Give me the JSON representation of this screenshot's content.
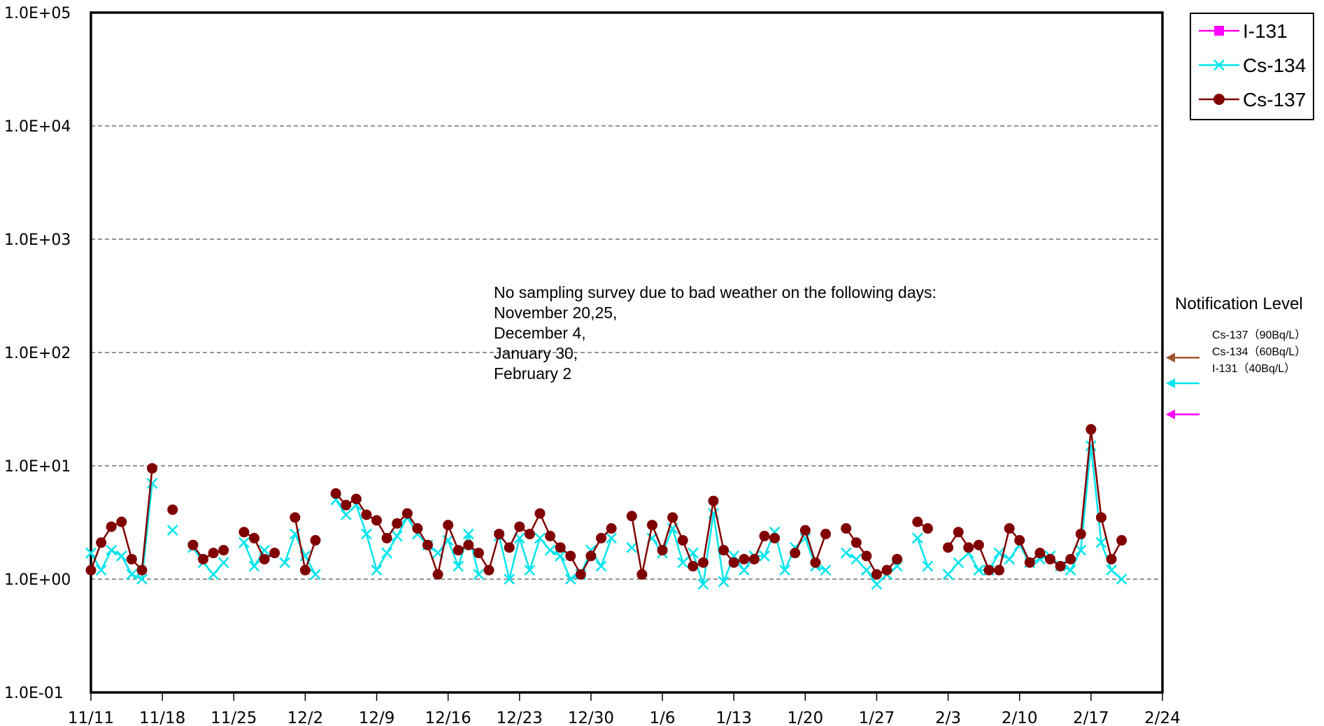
{
  "chart_data": {
    "type": "line",
    "title": "",
    "xlabel": "",
    "ylabel": "",
    "y_scale": "log",
    "ylim": [
      0.1,
      100000
    ],
    "y_ticks": [
      "1.0E-01",
      "1.0E+00",
      "1.0E+01",
      "1.0E+02",
      "1.0E+03",
      "1.0E+04",
      "1.0E+05"
    ],
    "x_range": [
      "11/11",
      "2/24"
    ],
    "x_ticks": [
      "11/11",
      "11/18",
      "11/25",
      "12/2",
      "12/9",
      "12/16",
      "12/23",
      "12/30",
      "1/6",
      "1/13",
      "1/20",
      "1/27",
      "2/3",
      "2/10",
      "2/17",
      "2/24"
    ],
    "grid": "horizontal-dashed",
    "legend_position": "top-right",
    "colors": {
      "I-131": "#ff00ff",
      "Cs-134": "#00e5ee",
      "Cs-137": "#800000",
      "Cs-137-arrow": "#a0522d"
    },
    "series": [
      {
        "name": "I-131",
        "marker": "square",
        "points": []
      },
      {
        "name": "Cs-134",
        "marker": "x",
        "points": [
          [
            "11/11",
            1.7
          ],
          [
            "11/12",
            1.2
          ],
          [
            "11/13",
            1.8
          ],
          [
            "11/14",
            1.6
          ],
          [
            "11/15",
            1.1
          ],
          [
            "11/16",
            1.0
          ],
          [
            "11/17",
            7.0
          ],
          [
            "11/19",
            2.7
          ],
          [
            "11/21",
            1.9
          ],
          [
            "11/22",
            1.4
          ],
          [
            "11/23",
            1.1
          ],
          [
            "11/24",
            1.4
          ],
          [
            "11/26",
            2.1
          ],
          [
            "11/27",
            1.3
          ],
          [
            "11/28",
            1.8
          ],
          [
            "11/30",
            1.4
          ],
          [
            "12/1",
            2.5
          ],
          [
            "12/2",
            1.6
          ],
          [
            "12/3",
            1.1
          ],
          [
            "12/5",
            5.0
          ],
          [
            "12/6",
            3.7
          ],
          [
            "12/7",
            4.5
          ],
          [
            "12/8",
            2.5
          ],
          [
            "12/9",
            1.2
          ],
          [
            "12/10",
            1.7
          ],
          [
            "12/11",
            2.4
          ],
          [
            "12/12",
            3.5
          ],
          [
            "12/13",
            2.5
          ],
          [
            "12/14",
            2.0
          ],
          [
            "12/15",
            1.7
          ],
          [
            "12/16",
            2.2
          ],
          [
            "12/17",
            1.3
          ],
          [
            "12/18",
            2.5
          ],
          [
            "12/19",
            1.1
          ],
          [
            "12/21",
            2.4
          ],
          [
            "12/22",
            1.0
          ],
          [
            "12/23",
            2.3
          ],
          [
            "12/24",
            1.2
          ],
          [
            "12/25",
            2.3
          ],
          [
            "12/26",
            1.8
          ],
          [
            "12/27",
            1.6
          ],
          [
            "12/28",
            1.0
          ],
          [
            "12/29",
            1.1
          ],
          [
            "12/30",
            1.8
          ],
          [
            "12/31",
            1.3
          ],
          [
            "1/1",
            2.3
          ],
          [
            "1/3",
            1.9
          ],
          [
            "1/5",
            2.3
          ],
          [
            "1/6",
            1.7
          ],
          [
            "1/7",
            2.8
          ],
          [
            "1/8",
            1.4
          ],
          [
            "1/9",
            1.7
          ],
          [
            "1/10",
            0.9
          ],
          [
            "1/11",
            3.8
          ],
          [
            "1/12",
            0.95
          ],
          [
            "1/13",
            1.6
          ],
          [
            "1/14",
            1.2
          ],
          [
            "1/15",
            1.6
          ],
          [
            "1/16",
            1.6
          ],
          [
            "1/17",
            2.6
          ],
          [
            "1/18",
            1.2
          ],
          [
            "1/19",
            1.9
          ],
          [
            "1/20",
            2.3
          ],
          [
            "1/21",
            1.3
          ],
          [
            "1/22",
            1.2
          ],
          [
            "1/24",
            1.7
          ],
          [
            "1/25",
            1.5
          ],
          [
            "1/26",
            1.2
          ],
          [
            "1/27",
            0.9
          ],
          [
            "1/28",
            1.1
          ],
          [
            "1/29",
            1.3
          ],
          [
            "1/31",
            2.3
          ],
          [
            "2/1",
            1.3
          ],
          [
            "2/3",
            1.1
          ],
          [
            "2/4",
            1.4
          ],
          [
            "2/5",
            1.7
          ],
          [
            "2/6",
            1.2
          ],
          [
            "2/7",
            1.2
          ],
          [
            "2/8",
            1.7
          ],
          [
            "2/9",
            1.5
          ],
          [
            "2/10",
            2.0
          ],
          [
            "2/11",
            1.4
          ],
          [
            "2/12",
            1.5
          ],
          [
            "2/13",
            1.6
          ],
          [
            "2/14",
            1.3
          ],
          [
            "2/15",
            1.2
          ],
          [
            "2/16",
            1.8
          ],
          [
            "2/17",
            15.0
          ],
          [
            "2/18",
            2.1
          ],
          [
            "2/19",
            1.2
          ],
          [
            "2/20",
            1.0
          ]
        ]
      },
      {
        "name": "Cs-137",
        "marker": "circle",
        "points": [
          [
            "11/11",
            1.2
          ],
          [
            "11/12",
            2.1
          ],
          [
            "11/13",
            2.9
          ],
          [
            "11/14",
            3.2
          ],
          [
            "11/15",
            1.5
          ],
          [
            "11/16",
            1.2
          ],
          [
            "11/17",
            9.5
          ],
          [
            "11/19",
            4.1
          ],
          [
            "11/21",
            2.0
          ],
          [
            "11/22",
            1.5
          ],
          [
            "11/23",
            1.7
          ],
          [
            "11/24",
            1.8
          ],
          [
            "11/26",
            2.6
          ],
          [
            "11/27",
            2.3
          ],
          [
            "11/28",
            1.5
          ],
          [
            "11/29",
            1.7
          ],
          [
            "12/1",
            3.5
          ],
          [
            "12/2",
            1.2
          ],
          [
            "12/3",
            2.2
          ],
          [
            "12/5",
            5.7
          ],
          [
            "12/6",
            4.5
          ],
          [
            "12/7",
            5.1
          ],
          [
            "12/8",
            3.7
          ],
          [
            "12/9",
            3.3
          ],
          [
            "12/10",
            2.3
          ],
          [
            "12/11",
            3.1
          ],
          [
            "12/12",
            3.8
          ],
          [
            "12/13",
            2.8
          ],
          [
            "12/14",
            2.0
          ],
          [
            "12/15",
            1.1
          ],
          [
            "12/16",
            3.0
          ],
          [
            "12/17",
            1.8
          ],
          [
            "12/18",
            2.0
          ],
          [
            "12/19",
            1.7
          ],
          [
            "12/20",
            1.2
          ],
          [
            "12/21",
            2.5
          ],
          [
            "12/22",
            1.9
          ],
          [
            "12/23",
            2.9
          ],
          [
            "12/24",
            2.5
          ],
          [
            "12/25",
            3.8
          ],
          [
            "12/26",
            2.4
          ],
          [
            "12/27",
            1.9
          ],
          [
            "12/28",
            1.6
          ],
          [
            "12/29",
            1.1
          ],
          [
            "12/30",
            1.6
          ],
          [
            "12/31",
            2.3
          ],
          [
            "1/1",
            2.8
          ],
          [
            "1/3",
            3.6
          ],
          [
            "1/4",
            1.1
          ],
          [
            "1/5",
            3.0
          ],
          [
            "1/6",
            1.8
          ],
          [
            "1/7",
            3.5
          ],
          [
            "1/8",
            2.2
          ],
          [
            "1/9",
            1.3
          ],
          [
            "1/10",
            1.4
          ],
          [
            "1/11",
            4.9
          ],
          [
            "1/12",
            1.8
          ],
          [
            "1/13",
            1.4
          ],
          [
            "1/14",
            1.5
          ],
          [
            "1/15",
            1.5
          ],
          [
            "1/16",
            2.4
          ],
          [
            "1/17",
            2.3
          ],
          [
            "1/19",
            1.7
          ],
          [
            "1/20",
            2.7
          ],
          [
            "1/21",
            1.4
          ],
          [
            "1/22",
            2.5
          ],
          [
            "1/24",
            2.8
          ],
          [
            "1/25",
            2.1
          ],
          [
            "1/26",
            1.6
          ],
          [
            "1/27",
            1.1
          ],
          [
            "1/28",
            1.2
          ],
          [
            "1/29",
            1.5
          ],
          [
            "1/31",
            3.2
          ],
          [
            "2/1",
            2.8
          ],
          [
            "2/3",
            1.9
          ],
          [
            "2/4",
            2.6
          ],
          [
            "2/5",
            1.9
          ],
          [
            "2/6",
            2.0
          ],
          [
            "2/7",
            1.2
          ],
          [
            "2/8",
            1.2
          ],
          [
            "2/9",
            2.8
          ],
          [
            "2/10",
            2.2
          ],
          [
            "2/11",
            1.4
          ],
          [
            "2/12",
            1.7
          ],
          [
            "2/13",
            1.5
          ],
          [
            "2/14",
            1.3
          ],
          [
            "2/15",
            1.5
          ],
          [
            "2/16",
            2.5
          ],
          [
            "2/17",
            21.0
          ],
          [
            "2/18",
            3.5
          ],
          [
            "2/19",
            1.5
          ],
          [
            "2/20",
            2.2
          ]
        ]
      }
    ],
    "annotation": {
      "lines": [
        "No sampling survey due to bad weather on the following days:",
        "November 20,25,",
        "December 4,",
        "January 30,",
        "February 2"
      ]
    },
    "notification_levels": {
      "title": "Notification Level",
      "items": [
        {
          "label": "Cs-137（90Bq/L）",
          "value": 90,
          "color": "#a0522d"
        },
        {
          "label": "Cs-134（60Bq/L）",
          "value": 60,
          "color": "#00e5ee"
        },
        {
          "label": "I-131（40Bq/L）",
          "value": 40,
          "color": "#ff00ff"
        }
      ]
    }
  }
}
